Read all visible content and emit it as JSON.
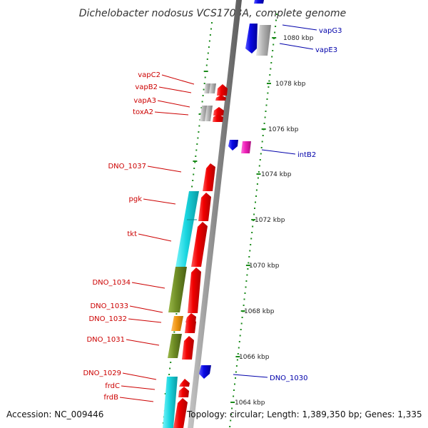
{
  "title": "Dichelobacter nodosus VCS1703A, complete genome",
  "accession": "Accession: NC_009446",
  "topology": "Topology: circular; Length: 1,389,350 bp; Genes: 1,335",
  "colors": {
    "label_left": "#cc0000",
    "label_right": "#0000aa",
    "tick": "#1a8a1a",
    "backbone": "#8c8c8c",
    "gene_red": "#f20000",
    "gene_blue": "#0a0ae6",
    "gene_grey": "#b4b4b4",
    "gene_magenta": "#ee20b8",
    "cog_cyan": "#1ad6e0",
    "cog_olive": "#6e8c24",
    "cog_orange": "#f09410"
  },
  "scale_labels": [
    "1080 kbp",
    "1078 kbp",
    "1076 kbp",
    "1074 kbp",
    "1072 kbp",
    "1070 kbp",
    "1068 kbp",
    "1066 kbp",
    "1064 kbp"
  ],
  "left_labels": [
    "vapC2",
    "vapB2",
    "vapA3",
    "toxA2",
    "DNO_1037",
    "pgk",
    "tkt",
    "DNO_1034",
    "DNO_1033",
    "DNO_1032",
    "DNO_1031",
    "DNO_1029",
    "frdC",
    "frdB"
  ],
  "right_labels": [
    "vapG3",
    "vapE3",
    "intB2",
    "DNO_1030"
  ]
}
